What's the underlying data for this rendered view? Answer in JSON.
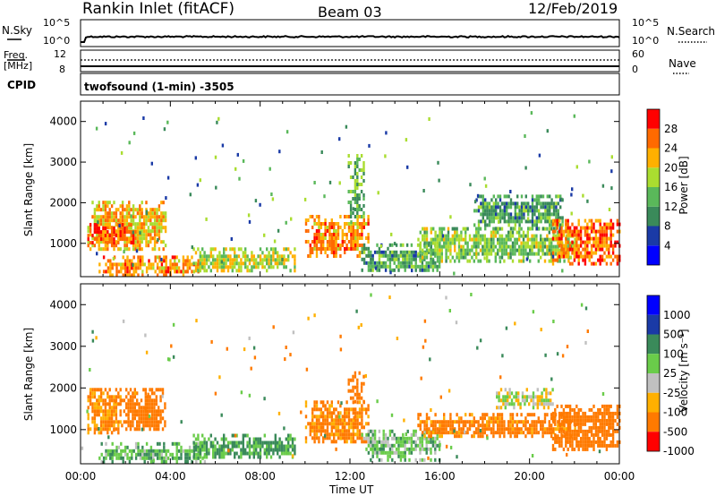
{
  "header": {
    "station": "Rankin Inlet (fitACF)",
    "beam": "Beam 03",
    "date": "12/Feb/2019"
  },
  "panels": {
    "nsky_label": "N.Sky",
    "nsearch_label": "N.Search",
    "nsky_ticks": [
      "10^5",
      "10^0"
    ],
    "nsearch_ticks": [
      "10^5",
      "10^0"
    ],
    "freq_label_1": "Freq.",
    "freq_label_2": "[MHz]",
    "freq_ticks": [
      "12",
      "8"
    ],
    "nave_label": "Nave",
    "nave_ticks": [
      "60",
      "0"
    ],
    "cpid_label": "CPID",
    "cpid_text": "twofsound (1-min) -3505"
  },
  "colors": {
    "power_scale": [
      "#0000ff",
      "#1a3aa6",
      "#3a8a5a",
      "#5ab85a",
      "#aadd30",
      "#ffb000",
      "#ff6a00",
      "#ff0000"
    ],
    "velocity_scale": [
      "#0000ff",
      "#1a3aa6",
      "#3a8a5a",
      "#6acc4a",
      "#c0c0c0",
      "#ffb000",
      "#ff7a00",
      "#ff0000"
    ],
    "ground_scatter": "#c0c0c0"
  },
  "chart_data": [
    {
      "type": "heatmap",
      "name": "power",
      "ylabel": "Slant Range [km]",
      "xlabel": "Time UT",
      "x_ticks": [
        "00:00",
        "04:00",
        "08:00",
        "12:00",
        "16:00",
        "20:00",
        "00:00"
      ],
      "y_ticks": [
        "1000",
        "2000",
        "3000",
        "4000"
      ],
      "ylim": [
        180,
        4500
      ],
      "xlim_hours": [
        0,
        24
      ],
      "colorbar": {
        "label": "Power [dB]",
        "ticks": [
          "4",
          "8",
          "12",
          "16",
          "20",
          "24",
          "28"
        ],
        "range": [
          0,
          32
        ]
      },
      "regions": [
        {
          "t0": 0.3,
          "t1": 3.8,
          "r0": 900,
          "r1": 2050,
          "level": 22
        },
        {
          "t0": 0.3,
          "t1": 2.5,
          "r0": 1000,
          "r1": 1500,
          "level": 28
        },
        {
          "t0": 0.8,
          "t1": 5.5,
          "r0": 200,
          "r1": 700,
          "level": 24
        },
        {
          "t0": 5.0,
          "t1": 9.5,
          "r0": 300,
          "r1": 900,
          "level": 18
        },
        {
          "t0": 10.0,
          "t1": 12.8,
          "r0": 700,
          "r1": 1700,
          "level": 24
        },
        {
          "t0": 11.9,
          "t1": 12.6,
          "r0": 1700,
          "r1": 3200,
          "level": 14
        },
        {
          "t0": 12.5,
          "t1": 16.0,
          "r0": 300,
          "r1": 1000,
          "level": 12
        },
        {
          "t0": 15.0,
          "t1": 22.0,
          "r0": 600,
          "r1": 1400,
          "level": 16
        },
        {
          "t0": 17.5,
          "t1": 21.5,
          "r0": 1400,
          "r1": 2200,
          "level": 12
        },
        {
          "t0": 21.0,
          "t1": 24.0,
          "r0": 500,
          "r1": 1600,
          "level": 26
        }
      ]
    },
    {
      "type": "heatmap",
      "name": "velocity",
      "ylabel": "Slant Range [km]",
      "xlabel": "Time UT",
      "x_ticks": [
        "00:00",
        "04:00",
        "08:00",
        "12:00",
        "16:00",
        "20:00",
        "00:00"
      ],
      "y_ticks": [
        "1000",
        "2000",
        "3000",
        "4000"
      ],
      "ylim": [
        180,
        4500
      ],
      "xlim_hours": [
        0,
        24
      ],
      "colorbar": {
        "label": "Velocity [m s⁻¹]",
        "ticks": [
          "1000",
          "500",
          "100",
          "25",
          "-25",
          "-100",
          "-500",
          "-1000"
        ]
      },
      "regions": [
        {
          "t0": 0.3,
          "t1": 1.8,
          "r0": 900,
          "r1": 2000,
          "level": -120
        },
        {
          "t0": 1.8,
          "t1": 3.8,
          "r0": 1000,
          "r1": 2000,
          "level": -200
        },
        {
          "t0": 0.8,
          "t1": 5.5,
          "r0": 200,
          "r1": 700,
          "level": 80
        },
        {
          "t0": 5.0,
          "t1": 9.5,
          "r0": 300,
          "r1": 900,
          "level": 120
        },
        {
          "t0": 10.0,
          "t1": 12.8,
          "r0": 700,
          "r1": 1700,
          "level": -150
        },
        {
          "t0": 11.9,
          "t1": 12.6,
          "r0": 1700,
          "r1": 2400,
          "level": -300
        },
        {
          "t0": 12.5,
          "t1": 16.0,
          "r0": 300,
          "r1": 1000,
          "level": 60
        },
        {
          "t0": 15.0,
          "t1": 22.0,
          "r0": 800,
          "r1": 1400,
          "level": -150
        },
        {
          "t0": 18.5,
          "t1": 21.0,
          "r0": 1500,
          "r1": 2000,
          "level": 0
        },
        {
          "t0": 21.0,
          "t1": 24.0,
          "r0": 500,
          "r1": 1600,
          "level": -300
        }
      ]
    }
  ]
}
